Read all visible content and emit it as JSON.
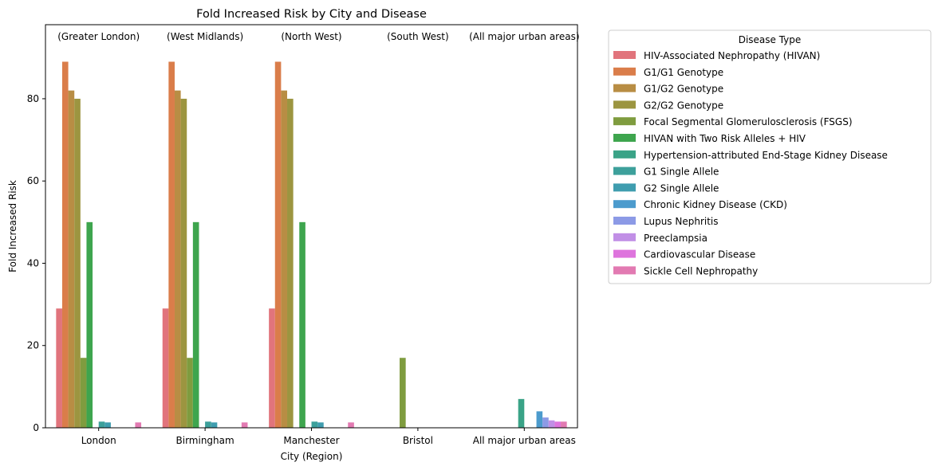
{
  "chart_data": {
    "type": "bar",
    "title": "Fold Increased Risk by City and Disease",
    "xlabel": "City (Region)",
    "ylabel": "Fold Increased Risk",
    "ylim": [
      0,
      98
    ],
    "yticks": [
      0,
      20,
      40,
      60,
      80
    ],
    "grid": false,
    "legend_title": "Disease Type",
    "legend_placement": "outside-right",
    "categories": [
      "London",
      "Birmingham",
      "Manchester",
      "Bristol",
      "All major urban areas"
    ],
    "annotations": [
      "(Greater London)",
      "(West Midlands)",
      "(North West)",
      "(South West)",
      "(All major urban areas)"
    ],
    "series": [
      {
        "name": "HIV-Associated Nephropathy (HIVAN)",
        "color": "#e1747c",
        "values": [
          29,
          29,
          29,
          null,
          null
        ]
      },
      {
        "name": "G1/G1 Genotype",
        "color": "#da7d4a",
        "values": [
          89,
          89,
          89,
          null,
          null
        ]
      },
      {
        "name": "G1/G2 Genotype",
        "color": "#b88d44",
        "values": [
          82,
          82,
          82,
          null,
          null
        ]
      },
      {
        "name": "G2/G2 Genotype",
        "color": "#9c9540",
        "values": [
          80,
          80,
          80,
          null,
          null
        ]
      },
      {
        "name": "Focal Segmental Glomerulosclerosis (FSGS)",
        "color": "#7f9c3f",
        "values": [
          17,
          17,
          null,
          17,
          null
        ]
      },
      {
        "name": "HIVAN with Two Risk Alleles + HIV",
        "color": "#3ea54e",
        "values": [
          50,
          50,
          50,
          null,
          null
        ]
      },
      {
        "name": "Hypertension-attributed End-Stage Kidney Disease",
        "color": "#3aa387",
        "values": [
          null,
          null,
          null,
          null,
          7
        ]
      },
      {
        "name": "G1 Single Allele",
        "color": "#3da09b",
        "values": [
          1.5,
          1.5,
          1.5,
          null,
          null
        ]
      },
      {
        "name": "G2 Single Allele",
        "color": "#3f9daf",
        "values": [
          1.3,
          1.3,
          1.3,
          null,
          null
        ]
      },
      {
        "name": "Chronic Kidney Disease (CKD)",
        "color": "#4c9bcd",
        "values": [
          null,
          null,
          null,
          null,
          4
        ]
      },
      {
        "name": "Lupus Nephritis",
        "color": "#8c9ae6",
        "values": [
          null,
          null,
          null,
          null,
          2.5
        ]
      },
      {
        "name": "Preeclampsia",
        "color": "#c18fe6",
        "values": [
          null,
          null,
          null,
          null,
          1.8
        ]
      },
      {
        "name": "Cardiovascular Disease",
        "color": "#de74dd",
        "values": [
          null,
          null,
          null,
          null,
          1.5
        ]
      },
      {
        "name": "Sickle Cell Nephropathy",
        "color": "#e27ab2",
        "values": [
          1.3,
          1.3,
          1.3,
          null,
          1.5
        ]
      }
    ]
  }
}
